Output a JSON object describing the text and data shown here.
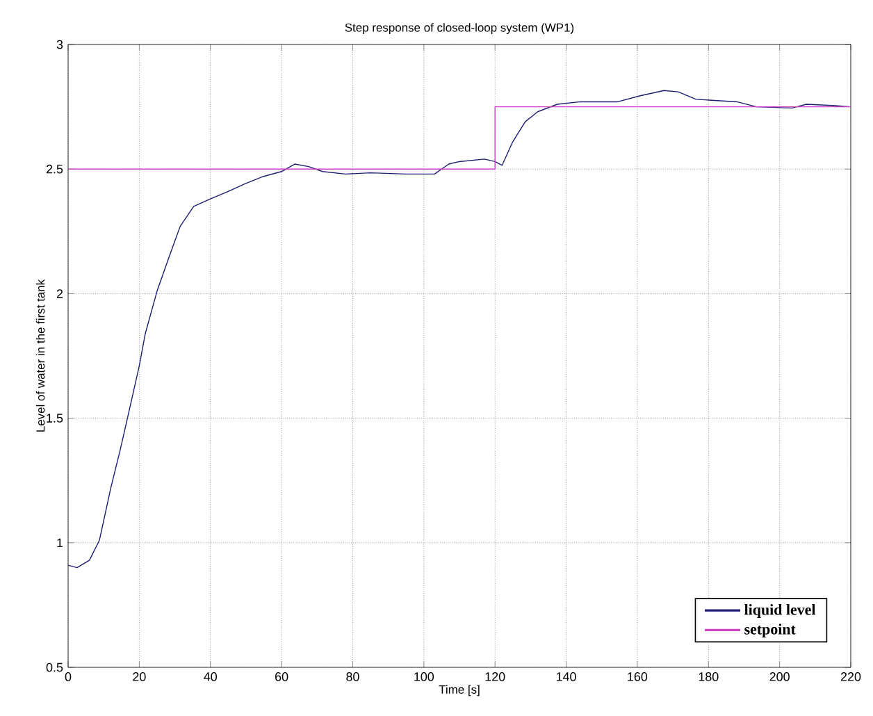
{
  "chart_data": {
    "type": "line",
    "title": "Step response of closed-loop system (WP1)",
    "xlabel": "Time [s]",
    "ylabel": "Level of water in the first tank",
    "xlim": [
      0,
      220
    ],
    "ylim": [
      0.5,
      3
    ],
    "xticks": [
      0,
      20,
      40,
      60,
      80,
      100,
      120,
      140,
      160,
      180,
      200,
      220
    ],
    "yticks": [
      0.5,
      1,
      1.5,
      2,
      2.5,
      3
    ],
    "grid": true,
    "legend": "bottom right",
    "line_style": "solid",
    "series": [
      {
        "name": "liquid level",
        "color": "#1c1c70",
        "x": [
          0,
          2.5,
          6,
          8.8,
          12,
          14.6,
          17,
          20,
          21.7,
          25,
          28.2,
          31.5,
          35.3,
          40,
          45,
          49.6,
          54.8,
          60,
          63.7,
          67.6,
          71.5,
          78,
          85,
          95,
          103,
          107,
          110,
          117,
          120,
          122,
          125,
          128.5,
          132,
          137.5,
          144,
          154.5,
          161,
          167.5,
          171.5,
          176.5,
          188,
          193.5,
          203.5,
          207.5,
          215,
          220
        ],
        "values": [
          0.91,
          0.9,
          0.93,
          1.01,
          1.22,
          1.37,
          1.52,
          1.71,
          1.84,
          2.01,
          2.14,
          2.27,
          2.35,
          2.38,
          2.41,
          2.44,
          2.47,
          2.49,
          2.52,
          2.51,
          2.49,
          2.48,
          2.485,
          2.48,
          2.48,
          2.52,
          2.53,
          2.54,
          2.53,
          2.515,
          2.61,
          2.69,
          2.73,
          2.76,
          2.77,
          2.77,
          2.795,
          2.815,
          2.81,
          2.78,
          2.77,
          2.75,
          2.745,
          2.76,
          2.755,
          2.75
        ]
      },
      {
        "name": "setpoint",
        "type": "step",
        "color": "#cc44cc",
        "x": [
          0,
          120,
          220
        ],
        "values": [
          2.5,
          2.75,
          2.75
        ]
      }
    ]
  }
}
